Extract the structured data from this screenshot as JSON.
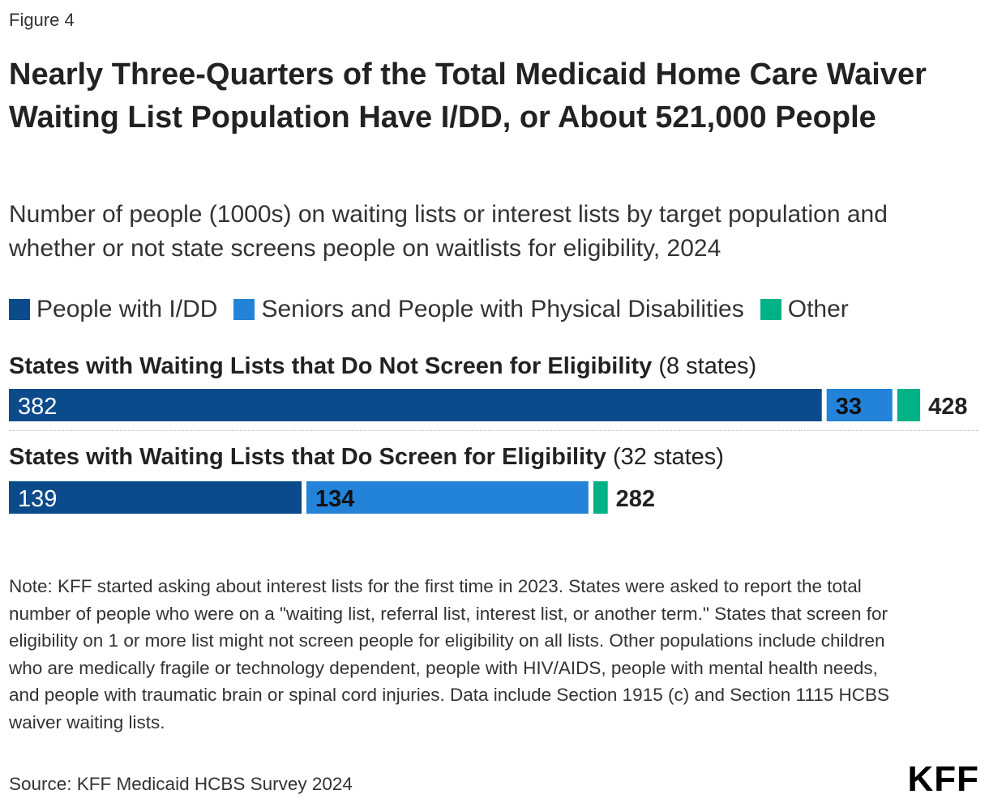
{
  "figure_label": "Figure 4",
  "title": "Nearly Three-Quarters of the Total Medicaid Home Care Waiver Waiting List Population Have I/DD, or About 521,000 People",
  "subtitle": "Number of people (1000s) on waiting lists or interest lists by target population and whether or not state screens people on waitlists for eligibility, 2024",
  "colors": {
    "idd": "#0B4A8B",
    "seniors": "#2383D8",
    "other": "#00B286"
  },
  "chart_data": {
    "type": "bar",
    "orientation": "horizontal",
    "stacked": true,
    "categories": [
      "States with Waiting Lists that Do Not Screen for Eligibility",
      "States with Waiting Lists that Do Screen for Eligibility"
    ],
    "category_notes": [
      "(8 states)",
      "(32 states)"
    ],
    "series": [
      {
        "name": "People with I/DD",
        "values": [
          382,
          139
        ],
        "color": "#0B4A8B"
      },
      {
        "name": "Seniors and People with Physical Disabilities",
        "values": [
          33,
          134
        ],
        "color": "#2383D8"
      },
      {
        "name": "Other",
        "values": [
          13,
          9
        ],
        "color": "#00B286"
      }
    ],
    "data_labels": [
      [
        "382",
        "33",
        ""
      ],
      [
        "139",
        "134",
        ""
      ]
    ],
    "totals": [
      428,
      282
    ],
    "total_labels": [
      "428",
      "282"
    ],
    "xlim": [
      0,
      450
    ],
    "title": "",
    "xlabel": "",
    "ylabel": "",
    "grid": false,
    "legend": "top-left"
  },
  "note": "Note: KFF started asking about interest lists for the first time in 2023. States were asked to report the total number of people who were on a \"waiting list, referral list, interest list, or another term.\" States that screen for eligibility on 1 or more list might not screen people for eligibility on all lists. Other populations include children who are medically fragile or technology dependent, people with HIV/AIDS, people with mental health needs, and people with traumatic brain or spinal cord injuries. Data include Section 1915 (c) and Section 1115 HCBS waiver waiting lists.",
  "source": "Source: KFF Medicaid HCBS Survey 2024",
  "logo_text": "KFF"
}
